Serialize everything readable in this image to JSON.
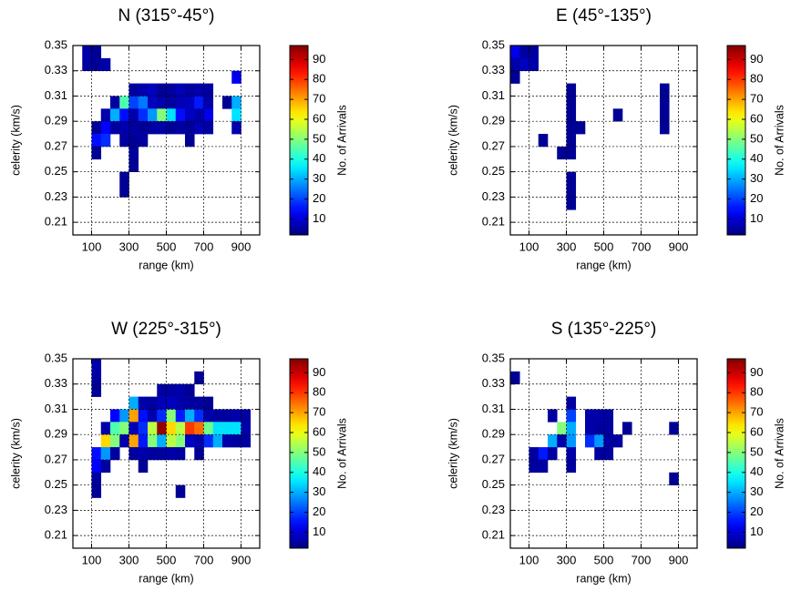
{
  "chart_data": [
    {
      "type": "heatmap",
      "title": "N (315°-45°)",
      "xlabel": "range (km)",
      "ylabel": "celerity (km/s)",
      "x": [
        50,
        100,
        50,
        100,
        150,
        850,
        300,
        350,
        400,
        450,
        500,
        550,
        600,
        650,
        700,
        200,
        250,
        300,
        350,
        400,
        450,
        500,
        550,
        600,
        650,
        700,
        800,
        850,
        150,
        200,
        250,
        300,
        350,
        400,
        450,
        500,
        550,
        600,
        650,
        700,
        850,
        100,
        150,
        200,
        250,
        300,
        350,
        400,
        450,
        500,
        550,
        600,
        650,
        700,
        850,
        100,
        150,
        250,
        300,
        350,
        600,
        100,
        300,
        300,
        250,
        250
      ],
      "y": [
        0.34,
        0.34,
        0.33,
        0.33,
        0.33,
        0.32,
        0.31,
        0.31,
        0.31,
        0.31,
        0.31,
        0.31,
        0.31,
        0.31,
        0.31,
        0.3,
        0.3,
        0.3,
        0.3,
        0.3,
        0.3,
        0.3,
        0.3,
        0.3,
        0.3,
        0.3,
        0.3,
        0.3,
        0.29,
        0.29,
        0.29,
        0.29,
        0.29,
        0.29,
        0.29,
        0.29,
        0.29,
        0.29,
        0.29,
        0.29,
        0.29,
        0.28,
        0.28,
        0.28,
        0.28,
        0.28,
        0.28,
        0.28,
        0.28,
        0.28,
        0.28,
        0.28,
        0.28,
        0.28,
        0.28,
        0.27,
        0.27,
        0.27,
        0.27,
        0.27,
        0.27,
        0.26,
        0.26,
        0.25,
        0.24,
        0.23
      ],
      "values": [
        6,
        4,
        5,
        4,
        6,
        12,
        5,
        6,
        8,
        4,
        5,
        7,
        5,
        6,
        5,
        5,
        45,
        20,
        25,
        8,
        6,
        5,
        7,
        8,
        16,
        6,
        4,
        30,
        6,
        30,
        15,
        6,
        18,
        28,
        50,
        35,
        15,
        8,
        6,
        12,
        35,
        4,
        14,
        5,
        6,
        5,
        4,
        5,
        6,
        4,
        5,
        4,
        7,
        5,
        6,
        15,
        18,
        5,
        4,
        5,
        4,
        4,
        5,
        4,
        4,
        4
      ],
      "x_bin_width": 50,
      "y_bin_width": 0.01,
      "colormap": "jet",
      "grid": true,
      "xlim": [
        0,
        1000
      ],
      "ylim": [
        0.2,
        0.35
      ],
      "xticks": [
        100,
        300,
        500,
        700,
        900
      ],
      "yticks": [
        0.21,
        0.23,
        0.25,
        0.27,
        0.29,
        0.31,
        0.33,
        0.35
      ],
      "colorbar": {
        "label": "No. of Arrivals",
        "lim": [
          2,
          97
        ],
        "ticks": [
          10,
          20,
          30,
          40,
          50,
          60,
          70,
          80,
          90
        ]
      }
    },
    {
      "type": "heatmap",
      "title": "E (45°-135°)",
      "xlabel": "range (km)",
      "ylabel": "celerity (km/s)",
      "x": [
        0,
        50,
        100,
        0,
        50,
        100,
        0,
        300,
        800,
        300,
        800,
        300,
        550,
        800,
        300,
        350,
        800,
        150,
        300,
        250,
        300,
        300,
        300,
        300
      ],
      "y": [
        0.34,
        0.34,
        0.34,
        0.33,
        0.33,
        0.33,
        0.32,
        0.31,
        0.31,
        0.3,
        0.3,
        0.29,
        0.29,
        0.29,
        0.28,
        0.28,
        0.28,
        0.27,
        0.27,
        0.26,
        0.26,
        0.24,
        0.23,
        0.22
      ],
      "values": [
        12,
        5,
        5,
        6,
        8,
        6,
        4,
        4,
        4,
        4,
        4,
        4,
        4,
        4,
        4,
        4,
        4,
        4,
        4,
        4,
        4,
        4,
        4,
        4
      ],
      "x_bin_width": 50,
      "y_bin_width": 0.01,
      "colormap": "jet",
      "grid": true,
      "xlim": [
        0,
        1000
      ],
      "ylim": [
        0.2,
        0.35
      ],
      "xticks": [
        100,
        300,
        500,
        700,
        900
      ],
      "yticks": [
        0.21,
        0.23,
        0.25,
        0.27,
        0.29,
        0.31,
        0.33,
        0.35
      ],
      "colorbar": {
        "label": "No. of Arrivals",
        "lim": [
          2,
          97
        ],
        "ticks": [
          10,
          20,
          30,
          40,
          50,
          60,
          70,
          80,
          90
        ]
      }
    },
    {
      "type": "heatmap",
      "title": "W (225°-315°)",
      "xlabel": "range (km)",
      "ylabel": "celerity (km/s)",
      "x": [
        100,
        100,
        650,
        100,
        450,
        500,
        550,
        600,
        300,
        350,
        400,
        450,
        500,
        550,
        600,
        650,
        700,
        200,
        250,
        300,
        350,
        400,
        450,
        500,
        550,
        600,
        650,
        700,
        750,
        800,
        850,
        900,
        150,
        200,
        250,
        300,
        350,
        400,
        450,
        500,
        550,
        600,
        650,
        700,
        750,
        800,
        850,
        900,
        150,
        200,
        250,
        300,
        350,
        400,
        450,
        500,
        550,
        600,
        650,
        700,
        750,
        800,
        850,
        900,
        100,
        150,
        200,
        300,
        350,
        400,
        450,
        500,
        550,
        650,
        100,
        150,
        350,
        100,
        100,
        550
      ],
      "y": [
        0.34,
        0.33,
        0.33,
        0.32,
        0.32,
        0.32,
        0.32,
        0.32,
        0.31,
        0.31,
        0.31,
        0.31,
        0.31,
        0.31,
        0.31,
        0.31,
        0.31,
        0.3,
        0.3,
        0.3,
        0.3,
        0.3,
        0.3,
        0.3,
        0.3,
        0.3,
        0.3,
        0.3,
        0.3,
        0.3,
        0.3,
        0.3,
        0.29,
        0.29,
        0.29,
        0.29,
        0.29,
        0.29,
        0.29,
        0.29,
        0.29,
        0.29,
        0.29,
        0.29,
        0.29,
        0.29,
        0.29,
        0.29,
        0.28,
        0.28,
        0.28,
        0.28,
        0.28,
        0.28,
        0.28,
        0.28,
        0.28,
        0.28,
        0.28,
        0.28,
        0.28,
        0.28,
        0.28,
        0.28,
        0.27,
        0.27,
        0.27,
        0.27,
        0.27,
        0.27,
        0.27,
        0.27,
        0.27,
        0.27,
        0.26,
        0.26,
        0.26,
        0.25,
        0.24,
        0.24
      ],
      "values": [
        6,
        5,
        4,
        4,
        5,
        5,
        6,
        4,
        30,
        6,
        5,
        7,
        8,
        6,
        5,
        5,
        4,
        14,
        28,
        70,
        15,
        6,
        18,
        50,
        16,
        30,
        18,
        6,
        5,
        5,
        6,
        5,
        6,
        45,
        50,
        7,
        18,
        55,
        95,
        65,
        55,
        80,
        75,
        48,
        35,
        35,
        35,
        6,
        65,
        50,
        6,
        70,
        16,
        50,
        30,
        55,
        50,
        8,
        6,
        18,
        30,
        6,
        5,
        5,
        15,
        28,
        5,
        5,
        6,
        5,
        5,
        6,
        5,
        4,
        14,
        5,
        4,
        5,
        4,
        4
      ],
      "x_bin_width": 50,
      "y_bin_width": 0.01,
      "colormap": "jet",
      "grid": true,
      "xlim": [
        0,
        1000
      ],
      "ylim": [
        0.2,
        0.35
      ],
      "xticks": [
        100,
        300,
        500,
        700,
        900
      ],
      "yticks": [
        0.21,
        0.23,
        0.25,
        0.27,
        0.29,
        0.31,
        0.33,
        0.35
      ],
      "colorbar": {
        "label": "No. of Arrivals",
        "lim": [
          2,
          97
        ],
        "ticks": [
          10,
          20,
          30,
          40,
          50,
          60,
          70,
          80,
          90
        ]
      }
    },
    {
      "type": "heatmap",
      "title": "S (135°-225°)",
      "xlabel": "range (km)",
      "ylabel": "celerity (km/s)",
      "x": [
        0,
        300,
        200,
        300,
        400,
        450,
        500,
        250,
        300,
        400,
        450,
        500,
        600,
        850,
        200,
        250,
        300,
        400,
        450,
        500,
        550,
        100,
        150,
        200,
        300,
        450,
        500,
        100,
        150,
        300,
        850
      ],
      "y": [
        0.33,
        0.31,
        0.3,
        0.3,
        0.3,
        0.3,
        0.3,
        0.29,
        0.29,
        0.29,
        0.29,
        0.29,
        0.29,
        0.29,
        0.28,
        0.28,
        0.28,
        0.28,
        0.28,
        0.28,
        0.28,
        0.27,
        0.27,
        0.27,
        0.27,
        0.27,
        0.27,
        0.26,
        0.26,
        0.26,
        0.25
      ],
      "values": [
        4,
        5,
        5,
        20,
        6,
        6,
        5,
        50,
        30,
        6,
        5,
        5,
        4,
        4,
        30,
        6,
        28,
        18,
        28,
        5,
        5,
        5,
        16,
        5,
        6,
        5,
        5,
        5,
        5,
        5,
        4
      ],
      "x_bin_width": 50,
      "y_bin_width": 0.01,
      "colormap": "jet",
      "grid": true,
      "xlim": [
        0,
        1000
      ],
      "ylim": [
        0.2,
        0.35
      ],
      "xticks": [
        100,
        300,
        500,
        700,
        900
      ],
      "yticks": [
        0.21,
        0.23,
        0.25,
        0.27,
        0.29,
        0.31,
        0.33,
        0.35
      ],
      "colorbar": {
        "label": "No. of Arrivals",
        "lim": [
          2,
          97
        ],
        "ticks": [
          10,
          20,
          30,
          40,
          50,
          60,
          70,
          80,
          90
        ]
      }
    }
  ]
}
